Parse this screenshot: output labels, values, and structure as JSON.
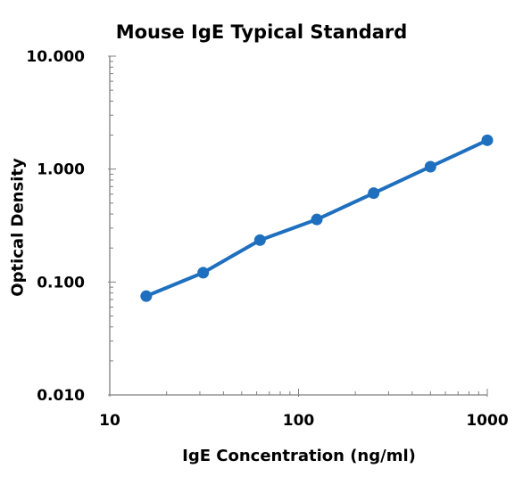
{
  "chart_data": {
    "type": "line",
    "title": "Mouse IgE Typical Standard",
    "xlabel": "IgE Concentration (ng/ml)",
    "ylabel": "Optical Density",
    "x_scale": "log",
    "y_scale": "log",
    "xlim": [
      10,
      1000
    ],
    "ylim": [
      0.01,
      10
    ],
    "x_ticks": [
      10,
      100,
      1000
    ],
    "x_tick_labels": [
      "10",
      "100",
      "1000"
    ],
    "y_ticks": [
      0.01,
      0.1,
      1,
      10
    ],
    "y_tick_labels": [
      "0.010",
      "0.100",
      "1.000",
      "10.000"
    ],
    "grid": false,
    "series": [
      {
        "color": "#1f6fbf",
        "x": [
          15.6,
          31.25,
          62.5,
          125,
          250,
          500,
          1000
        ],
        "y": [
          0.075,
          0.121,
          0.235,
          0.358,
          0.612,
          1.05,
          1.8
        ]
      }
    ]
  }
}
